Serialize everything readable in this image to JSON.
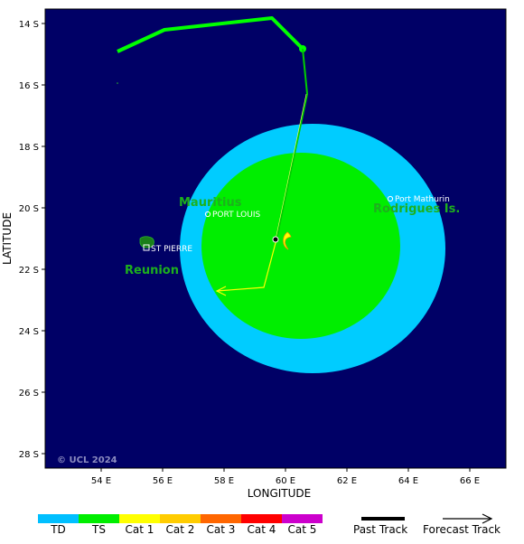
{
  "map": {
    "xaxis": {
      "title": "LONGITUDE",
      "ticks": [
        "54 E",
        "56 E",
        "58 E",
        "60 E",
        "62 E",
        "64 E",
        "66 E"
      ]
    },
    "yaxis": {
      "title": "LATITUDE",
      "ticks": [
        "14 S",
        "16 S",
        "18 S",
        "20 S",
        "22 S",
        "24 S",
        "26 S",
        "28 S"
      ]
    },
    "places": {
      "mauritius": "Mauritius",
      "port_louis": "PORT LOUIS",
      "rodrigues": "Rodrigues Is.",
      "port_mathurin": "Port Mathurin",
      "reunion": "Reunion",
      "st_pierre": "ST PIERRE"
    },
    "copyright": "© UCL 2024",
    "colors": {
      "ocean": "#000066",
      "track": "#00ff00",
      "ts_wind_field": "#00ee00",
      "td_wind_field": "#00ccff",
      "forecast": "#ffff00"
    },
    "storm_symbol": "tropical-storm-icon"
  },
  "legend": {
    "categories": [
      {
        "label": "TD",
        "color": "#00bfff"
      },
      {
        "label": "TS",
        "color": "#00ee00"
      },
      {
        "label": "Cat 1",
        "color": "#ffff00"
      },
      {
        "label": "Cat 2",
        "color": "#ffcc00"
      },
      {
        "label": "Cat 3",
        "color": "#ff6600"
      },
      {
        "label": "Cat 4",
        "color": "#ff0000"
      },
      {
        "label": "Cat 5",
        "color": "#cc00cc"
      }
    ],
    "past_track": "Past Track",
    "forecast_track": "Forecast Track"
  }
}
